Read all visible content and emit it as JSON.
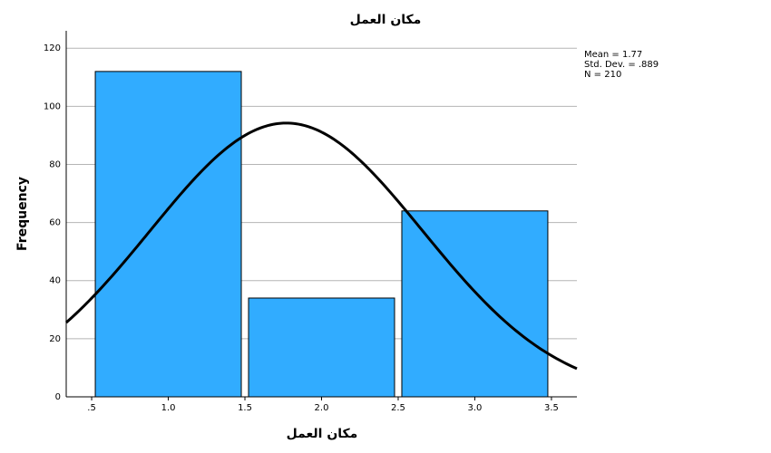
{
  "chart_data": {
    "type": "histogram",
    "title": "مكان العمل",
    "x_label": "مكان العمل",
    "y_label": "Frequency",
    "bins": [
      0.5,
      1.5,
      2.5,
      3.5
    ],
    "values": [
      112,
      34,
      64
    ],
    "color": "#31acff",
    "xlim": [
      0.334,
      3.666
    ],
    "xticks": [
      {
        "value": 0.5,
        "label": ".5"
      },
      {
        "value": 1.0,
        "label": "1.0"
      },
      {
        "value": 1.5,
        "label": "1.5"
      },
      {
        "value": 2.0,
        "label": "2.0"
      },
      {
        "value": 2.5,
        "label": "2.5"
      },
      {
        "value": 3.0,
        "label": "3.0"
      },
      {
        "value": 3.5,
        "label": "3.5"
      }
    ],
    "ylim": [
      0,
      126
    ],
    "yticks": [
      0,
      20,
      40,
      60,
      80,
      100,
      120
    ],
    "grid": true,
    "normal_curve": {
      "mean": 1.77,
      "sd": 0.889,
      "n": 210,
      "color": "#000000"
    },
    "stats_labels": [
      "Mean = 1.77",
      "Std. Dev. = .889",
      "N = 210"
    ]
  }
}
